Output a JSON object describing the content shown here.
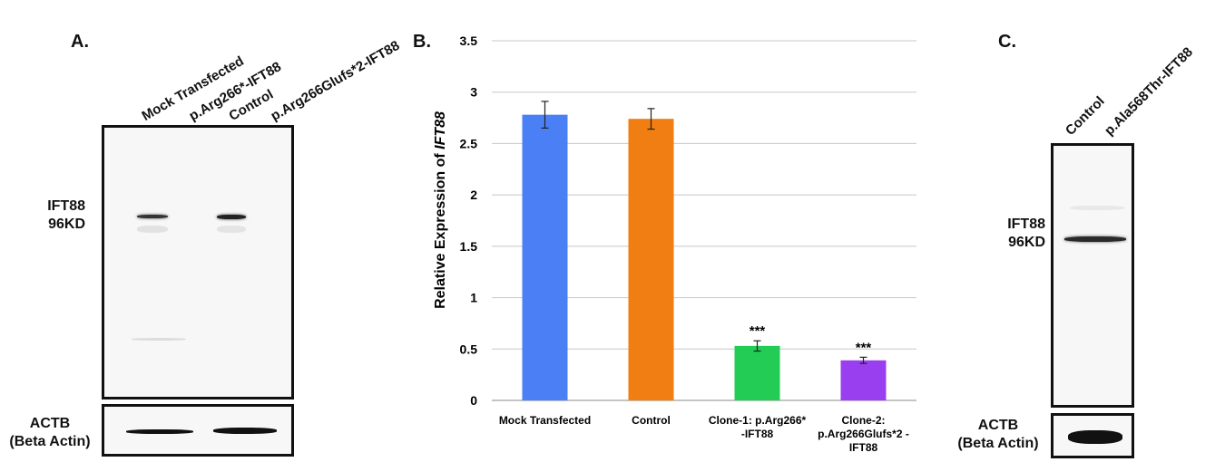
{
  "panel_a": {
    "letter": "A.",
    "lanes": [
      "Mock Transfected",
      "p.Arg266*-IFT88",
      "Control",
      "p.Arg266Glufs*2-IFT88"
    ],
    "target_label": [
      "IFT88",
      "96KD"
    ],
    "loading_label": [
      "ACTB",
      "(Beta Actin)"
    ]
  },
  "panel_b": {
    "letter": "B."
  },
  "panel_c": {
    "letter": "C.",
    "lanes": [
      "Control",
      "p.Ala568Thr-IFT88"
    ],
    "target_label": [
      "IFT88",
      "96KD"
    ],
    "loading_label": [
      "ACTB",
      "(Beta Actin)"
    ]
  },
  "chart_data": {
    "type": "bar",
    "categories": [
      [
        "Mock Transfected"
      ],
      [
        "Control"
      ],
      [
        "Clone-1: p.Arg266*",
        "-IFT88"
      ],
      [
        "Clone-2:",
        "p.Arg266Glufs*2 -",
        "IFT88"
      ]
    ],
    "values": [
      2.78,
      2.74,
      0.53,
      0.39
    ],
    "errors": [
      0.13,
      0.1,
      0.05,
      0.03
    ],
    "significance": [
      "",
      "",
      "***",
      "***"
    ],
    "colors": [
      "#4a7ff5",
      "#f07e12",
      "#22cc55",
      "#9a3ff0"
    ],
    "ylabel_prefix": "Relative Expression of ",
    "ylabel_gene": "IFT88",
    "xlabel": "",
    "ylim": [
      0,
      3.5
    ],
    "yticks": [
      "0",
      "0.5",
      "1",
      "1.5",
      "2",
      "2.5",
      "3",
      "3.5"
    ],
    "grid": true
  }
}
